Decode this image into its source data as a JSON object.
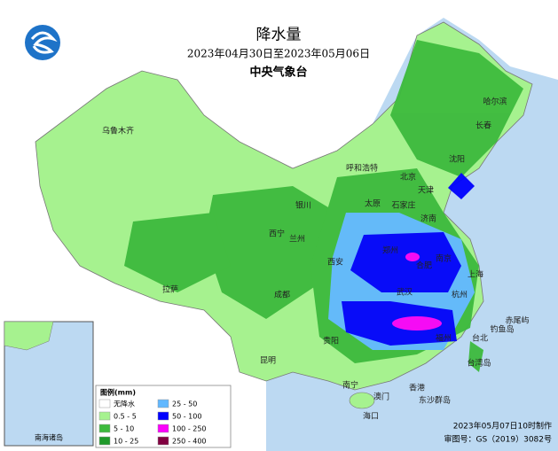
{
  "header": {
    "title": "降水量",
    "period": "2023年04月30日至2023年05月06日",
    "issuer": "中央气象台"
  },
  "legend": {
    "title": "图例(mm)",
    "items": [
      {
        "label": "无降水",
        "color": "#ffffff"
      },
      {
        "label": "0.5 - 5",
        "color": "#a6f28f"
      },
      {
        "label": "5 - 10",
        "color": "#3dba3d"
      },
      {
        "label": "10 - 25",
        "color": "#1f9a2a"
      },
      {
        "label": "25 - 50",
        "color": "#61b8ff"
      },
      {
        "label": "50 - 100",
        "color": "#0000fe"
      },
      {
        "label": "100 - 250",
        "color": "#fa00fa"
      },
      {
        "label": "250 - 400",
        "color": "#800040"
      }
    ]
  },
  "cities": [
    "哈尔滨",
    "长春",
    "沈阳",
    "乌鲁木齐",
    "呼和浩特",
    "北京",
    "天津",
    "石家庄",
    "太原",
    "济南",
    "银川",
    "西宁",
    "兰州",
    "郑州",
    "西安",
    "合肥",
    "南京",
    "上海",
    "杭州",
    "武汉",
    "成都",
    "拉萨",
    "贵阳",
    "昆明",
    "南宁",
    "香港",
    "澳门",
    "海口",
    "福州",
    "台北",
    "钓鱼岛",
    "赤尾屿",
    "台湾岛",
    "东沙群岛"
  ],
  "inset": {
    "label": "南海诸岛"
  },
  "footer": {
    "made": "2023年05月07日10时制作",
    "approval": "审图号：GS（2019）3082号"
  }
}
